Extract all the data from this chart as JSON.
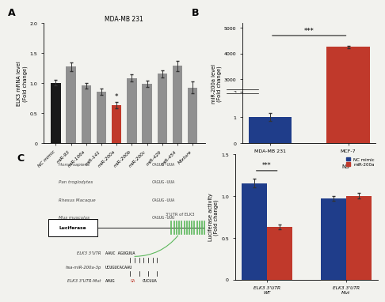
{
  "panel_A": {
    "title": "MDA-MB 231",
    "ylabel": "ELK3 mRNA level\n(Fold change)",
    "categories": [
      "NC mimic",
      "miR-93",
      "miR-106a",
      "miR-141",
      "miR-200a",
      "miR-200b",
      "miR-200c",
      "miR-429",
      "miR-454",
      "Mixture"
    ],
    "values": [
      1.0,
      1.27,
      0.95,
      0.85,
      0.63,
      1.08,
      0.98,
      1.15,
      1.28,
      0.92
    ],
    "errors": [
      0.05,
      0.07,
      0.04,
      0.05,
      0.05,
      0.06,
      0.05,
      0.06,
      0.08,
      0.1
    ],
    "colors": [
      "#1a1a1a",
      "#909090",
      "#909090",
      "#909090",
      "#c0392b",
      "#909090",
      "#909090",
      "#909090",
      "#909090",
      "#909090"
    ],
    "ylim": [
      0,
      2.0
    ],
    "yticks": [
      0.0,
      0.5,
      1.0,
      1.5,
      2.0
    ],
    "star_idx": 4,
    "star_text": "*"
  },
  "panel_B": {
    "ylabel": "miR-200a level\n(Fold change)",
    "categories": [
      "MDA-MB 231",
      "MCF-7"
    ],
    "values": [
      1.0,
      4250.0
    ],
    "errors": [
      0.15,
      60.0
    ],
    "colors": [
      "#1f3d8a",
      "#c0392b"
    ],
    "ylim": [
      0,
      5000
    ],
    "yticks_low": [
      0,
      1,
      2
    ],
    "yticks_high": [
      3000,
      4000,
      5000
    ],
    "star_text": "***"
  },
  "panel_C_species": {
    "species": [
      "Homo sapiens",
      "Pan troglodytes",
      "Rhesus Macaque",
      "Mus musculus"
    ],
    "sequences": [
      "CAGUG-UUA",
      "CAGUG-UUA",
      "CAGUG-UUA",
      "CAGUG-UUU"
    ]
  },
  "panel_D": {
    "ylabel": "Luciferase activity\n(Fold change)",
    "groups": [
      "ELK3 3’UTR\nWT",
      "ELK3 3’UTR\nMut"
    ],
    "nc_values": [
      1.15,
      0.97
    ],
    "mir_values": [
      0.63,
      1.0
    ],
    "nc_errors": [
      0.05,
      0.03
    ],
    "mir_errors": [
      0.03,
      0.03
    ],
    "nc_color": "#1f3d8a",
    "mir_color": "#c0392b",
    "ylim": [
      0,
      1.5
    ],
    "yticks": [
      0.0,
      0.5,
      1.0,
      1.5
    ],
    "star_text_left": "***",
    "star_text_right": "NS",
    "legend_nc": "NC mimic",
    "legend_mir": "miR-200a"
  },
  "bg_color": "#f2f2ee"
}
